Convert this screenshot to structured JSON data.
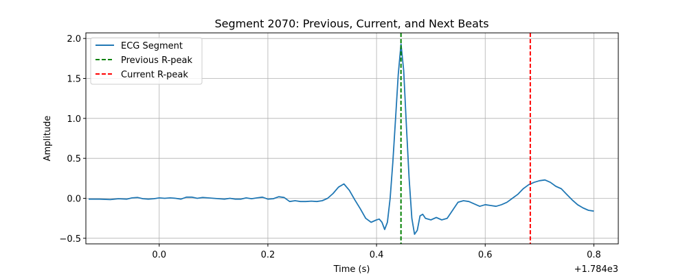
{
  "chart_data": {
    "type": "line",
    "title": "Segment 2070: Previous, Current, and Next Beats",
    "xlabel": "Time (s)",
    "ylabel": "Amplitude",
    "x_offset_label": "+1.784e3",
    "xlim": [
      -0.135,
      0.845
    ],
    "ylim": [
      -0.57,
      2.07
    ],
    "xticks": [
      0.0,
      0.2,
      0.4,
      0.6,
      0.8
    ],
    "xtick_labels": [
      "0.0",
      "0.2",
      "0.4",
      "0.6",
      "0.8"
    ],
    "yticks": [
      -0.5,
      0.0,
      0.5,
      1.0,
      1.5,
      2.0
    ],
    "ytick_labels": [
      "−0.5",
      "0.0",
      "0.5",
      "1.0",
      "1.5",
      "2.0"
    ],
    "grid": true,
    "legend_position": "top-left",
    "series": [
      {
        "name": "ECG Segment",
        "color": "#1f77b4",
        "style": "solid",
        "x": [
          -0.13,
          -0.11,
          -0.09,
          -0.075,
          -0.06,
          -0.05,
          -0.04,
          -0.03,
          -0.02,
          -0.01,
          0.0,
          0.01,
          0.02,
          0.03,
          0.04,
          0.05,
          0.06,
          0.07,
          0.08,
          0.09,
          0.1,
          0.11,
          0.12,
          0.13,
          0.14,
          0.15,
          0.16,
          0.17,
          0.18,
          0.19,
          0.2,
          0.21,
          0.22,
          0.23,
          0.24,
          0.25,
          0.26,
          0.27,
          0.28,
          0.29,
          0.3,
          0.31,
          0.32,
          0.33,
          0.34,
          0.35,
          0.36,
          0.37,
          0.38,
          0.39,
          0.4,
          0.405,
          0.41,
          0.415,
          0.42,
          0.425,
          0.43,
          0.435,
          0.44,
          0.445,
          0.45,
          0.455,
          0.46,
          0.465,
          0.47,
          0.475,
          0.48,
          0.485,
          0.49,
          0.5,
          0.51,
          0.52,
          0.53,
          0.54,
          0.55,
          0.56,
          0.57,
          0.58,
          0.59,
          0.6,
          0.61,
          0.62,
          0.63,
          0.64,
          0.65,
          0.66,
          0.67,
          0.68,
          0.69,
          0.7,
          0.71,
          0.72,
          0.73,
          0.74,
          0.75,
          0.76,
          0.77,
          0.78,
          0.79,
          0.8
        ],
        "y": [
          -0.01,
          -0.01,
          -0.015,
          -0.005,
          -0.01,
          0.005,
          0.01,
          -0.005,
          -0.01,
          -0.005,
          0.005,
          0.0,
          0.005,
          0.0,
          -0.01,
          0.015,
          0.015,
          0.0,
          0.01,
          0.005,
          0.0,
          -0.005,
          -0.01,
          0.0,
          -0.01,
          -0.01,
          0.005,
          -0.005,
          0.005,
          0.015,
          -0.01,
          -0.005,
          0.02,
          0.01,
          -0.04,
          -0.03,
          -0.04,
          -0.04,
          -0.035,
          -0.04,
          -0.03,
          0.0,
          0.06,
          0.14,
          0.18,
          0.1,
          -0.02,
          -0.13,
          -0.25,
          -0.3,
          -0.27,
          -0.26,
          -0.3,
          -0.39,
          -0.3,
          0.0,
          0.45,
          1.0,
          1.55,
          1.93,
          1.6,
          0.9,
          0.25,
          -0.25,
          -0.45,
          -0.4,
          -0.22,
          -0.2,
          -0.25,
          -0.27,
          -0.24,
          -0.27,
          -0.25,
          -0.15,
          -0.05,
          -0.03,
          -0.04,
          -0.07,
          -0.1,
          -0.08,
          -0.09,
          -0.1,
          -0.08,
          -0.05,
          0.0,
          0.05,
          0.12,
          0.17,
          0.2,
          0.22,
          0.23,
          0.2,
          0.15,
          0.12,
          0.05,
          -0.02,
          -0.08,
          -0.12,
          -0.15,
          -0.16
        ]
      },
      {
        "name": "Previous R-peak",
        "color": "#008000",
        "style": "dashed",
        "x_value": 0.445
      },
      {
        "name": "Current R-peak",
        "color": "#ff0000",
        "style": "dashed",
        "x_value": 0.683
      }
    ]
  }
}
